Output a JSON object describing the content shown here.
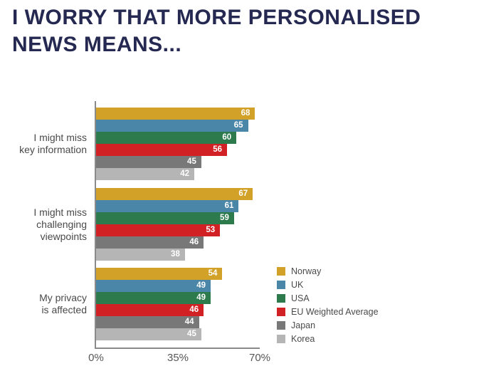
{
  "title": "I WORRY THAT MORE PERSONALISED NEWS MEANS...",
  "title_color": "#252850",
  "axis_color": "#8a8a8a",
  "chart_data": {
    "type": "bar",
    "orientation": "horizontal",
    "title": "I WORRY THAT MORE PERSONALISED NEWS MEANS...",
    "categories": [
      "I might miss key information",
      "I might miss challenging viewpoints",
      "My privacy is affected"
    ],
    "category_label_lines": [
      [
        "I might miss",
        "key information"
      ],
      [
        "I might miss",
        "challenging",
        "viewpoints"
      ],
      [
        "My privacy",
        "is affected"
      ]
    ],
    "series": [
      {
        "name": "Norway",
        "color": "#D2A128",
        "values": [
          68,
          67,
          54
        ]
      },
      {
        "name": "UK",
        "color": "#4A86A8",
        "values": [
          65,
          61,
          49
        ]
      },
      {
        "name": "USA",
        "color": "#2D7A4D",
        "values": [
          60,
          59,
          49
        ]
      },
      {
        "name": "EU Weighted Average",
        "color": "#D12124",
        "values": [
          56,
          53,
          46
        ]
      },
      {
        "name": "Japan",
        "color": "#787878",
        "values": [
          45,
          46,
          44
        ]
      },
      {
        "name": "Korea",
        "color": "#B5B5B5",
        "values": [
          42,
          38,
          45
        ]
      }
    ],
    "value_labels_shown": true,
    "xlabel": "",
    "ylabel": "",
    "x_ticks": [
      "0%",
      "35%",
      "70%"
    ],
    "xlim": [
      0,
      70
    ],
    "grid": false,
    "legend_position": "right-bottom",
    "legend_entries": [
      "Norway",
      "UK",
      "USA",
      "EU Weighted Average",
      "Japan",
      "Korea"
    ]
  }
}
